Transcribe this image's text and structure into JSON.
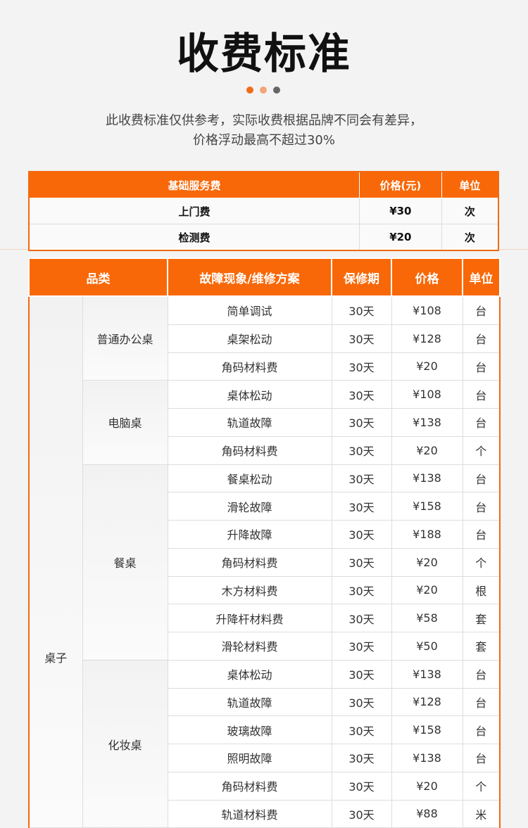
{
  "title": "收费标准",
  "dots": [
    "#f26a1b",
    "#f4a57a",
    "#666666"
  ],
  "subtitle": [
    "此收费标准仅供参考，实际收费根据品牌不同会有差异，",
    "价格浮动最高不超过30%"
  ],
  "basic": {
    "headers": [
      "基础服务费",
      "价格(元)",
      "单位"
    ],
    "rows": [
      [
        "上门费",
        "¥30",
        "次"
      ],
      [
        "检测费",
        "¥20",
        "次"
      ]
    ]
  },
  "main": {
    "headers": [
      "品类",
      "故障现象/维修方案",
      "保修期",
      "价格",
      "单位"
    ],
    "category": "桌子",
    "groups": [
      {
        "name": "普通办公桌",
        "rows": [
          [
            "简单调试",
            "30天",
            "¥108",
            "台"
          ],
          [
            "桌架松动",
            "30天",
            "¥128",
            "台"
          ],
          [
            "角码材料费",
            "30天",
            "¥20",
            "台"
          ]
        ]
      },
      {
        "name": "电脑桌",
        "rows": [
          [
            "桌体松动",
            "30天",
            "¥108",
            "台"
          ],
          [
            "轨道故障",
            "30天",
            "¥138",
            "台"
          ],
          [
            "角码材料费",
            "30天",
            "¥20",
            "个"
          ]
        ]
      },
      {
        "name": "餐桌",
        "rows": [
          [
            "餐桌松动",
            "30天",
            "¥138",
            "台"
          ],
          [
            "滑轮故障",
            "30天",
            "¥158",
            "台"
          ],
          [
            "升降故障",
            "30天",
            "¥188",
            "台"
          ],
          [
            "角码材料费",
            "30天",
            "¥20",
            "个"
          ],
          [
            "木方材料费",
            "30天",
            "¥20",
            "根"
          ],
          [
            "升降杆材料费",
            "30天",
            "¥58",
            "套"
          ],
          [
            "滑轮材料费",
            "30天",
            "¥50",
            "套"
          ]
        ]
      },
      {
        "name": "化妆桌",
        "rows": [
          [
            "桌体松动",
            "30天",
            "¥138",
            "台"
          ],
          [
            "轨道故障",
            "30天",
            "¥128",
            "台"
          ],
          [
            "玻璃故障",
            "30天",
            "¥158",
            "台"
          ],
          [
            "照明故障",
            "30天",
            "¥138",
            "台"
          ],
          [
            "角码材料费",
            "30天",
            "¥20",
            "个"
          ],
          [
            "轨道材料费",
            "30天",
            "¥88",
            "米"
          ]
        ]
      }
    ]
  }
}
